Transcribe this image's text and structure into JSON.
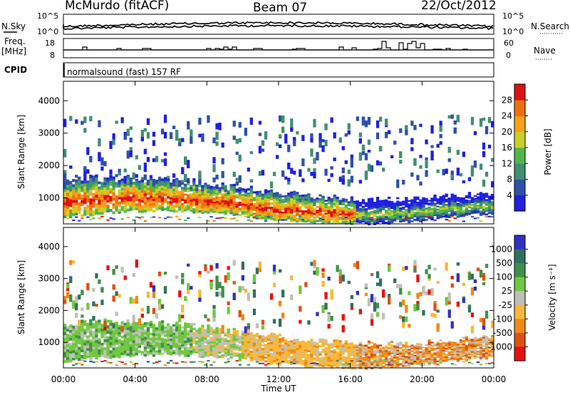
{
  "header": {
    "station": "McMurdo (fitACF)",
    "beam": "Beam 07",
    "date": "22/Oct/2012"
  },
  "top_panels": {
    "nsky_label": "N.Sky",
    "nsearch_label": "N.Search",
    "nsky_ticks": [
      "10^5",
      "10^0"
    ],
    "nsearch_ticks": [
      "10^5",
      "10^0"
    ],
    "freq_label": "Freq.",
    "freq_unit": "[MHz]",
    "freq_ticks": [
      "18",
      "8"
    ],
    "nave_label": "Nave",
    "nave_ticks": [
      "60",
      "0"
    ],
    "cpid_label": "CPID",
    "cpid_text": "normalsound (fast) 157 RF"
  },
  "chart_data": [
    {
      "type": "heatmap",
      "name": "power",
      "ylabel": "Slant Range [km]",
      "ylim": [
        200,
        4600
      ],
      "yticks": [
        "1000",
        "2000",
        "3000",
        "4000"
      ],
      "xlim": [
        "00:00",
        "24:00"
      ],
      "colorbar_label": "Power [dB]",
      "colorbar_ticks": [
        "4",
        "8",
        "12",
        "16",
        "20",
        "24",
        "28"
      ],
      "colors": [
        "#2020e0",
        "#3050a8",
        "#409070",
        "#50b848",
        "#c8d028",
        "#f8a018",
        "#f07010",
        "#e01010"
      ]
    },
    {
      "type": "heatmap",
      "name": "velocity",
      "ylabel": "Slant Range [km]",
      "ylim": [
        200,
        4600
      ],
      "yticks": [
        "1000",
        "2000",
        "3000",
        "4000"
      ],
      "xlim": [
        "00:00",
        "24:00"
      ],
      "xlabel": "Time UT",
      "xticks": [
        "00:00",
        "04:00",
        "08:00",
        "12:00",
        "16:00",
        "20:00",
        "00:00"
      ],
      "colorbar_label": "Velocity [m s⁻¹]",
      "colorbar_ticks": [
        "1000",
        "500",
        "100",
        "25",
        "-25",
        "-100",
        "-500",
        "-1000"
      ],
      "colors": [
        "#3030c0",
        "#307060",
        "#409048",
        "#70c840",
        "#c0c0b8",
        "#f8b838",
        "#f08818",
        "#e05010",
        "#e81010"
      ]
    }
  ]
}
